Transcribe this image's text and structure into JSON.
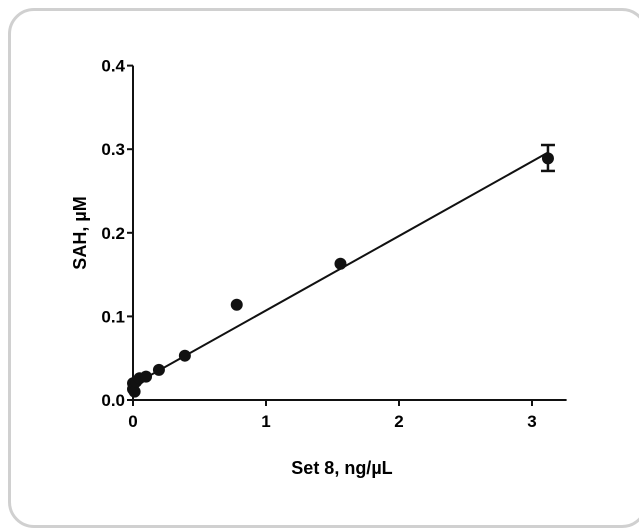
{
  "chart_data": {
    "type": "scatter",
    "xlabel": "Set 8, ng/µL",
    "ylabel": "SAH, µM",
    "xlim": [
      0,
      3.2
    ],
    "ylim": [
      0,
      0.4
    ],
    "x_ticks": [
      0,
      1,
      2,
      3
    ],
    "y_ticks": [
      0.0,
      0.1,
      0.2,
      0.3,
      0.4
    ],
    "x_tick_labels": [
      "0",
      "1",
      "2",
      "3"
    ],
    "y_tick_labels": [
      "0.0",
      "0.1",
      "0.2",
      "0.3",
      "0.4"
    ],
    "grid": false,
    "points": [
      {
        "x": 0.0,
        "y": 0.02
      },
      {
        "x": 0.0,
        "y": 0.013
      },
      {
        "x": 0.012,
        "y": 0.01
      },
      {
        "x": 0.024,
        "y": 0.022
      },
      {
        "x": 0.049,
        "y": 0.026
      },
      {
        "x": 0.098,
        "y": 0.028
      },
      {
        "x": 0.195,
        "y": 0.036
      },
      {
        "x": 0.39,
        "y": 0.053
      },
      {
        "x": 0.78,
        "y": 0.114
      },
      {
        "x": 1.56,
        "y": 0.163
      },
      {
        "x": 3.12,
        "y": 0.289,
        "error": [
          0.274,
          0.305
        ]
      }
    ],
    "fit_line": {
      "x": [
        0.0,
        3.12
      ],
      "y": [
        0.018,
        0.296
      ]
    },
    "colors": {
      "marker": "#111111",
      "line": "#111111",
      "frame_border": "#d0d0d0"
    }
  }
}
